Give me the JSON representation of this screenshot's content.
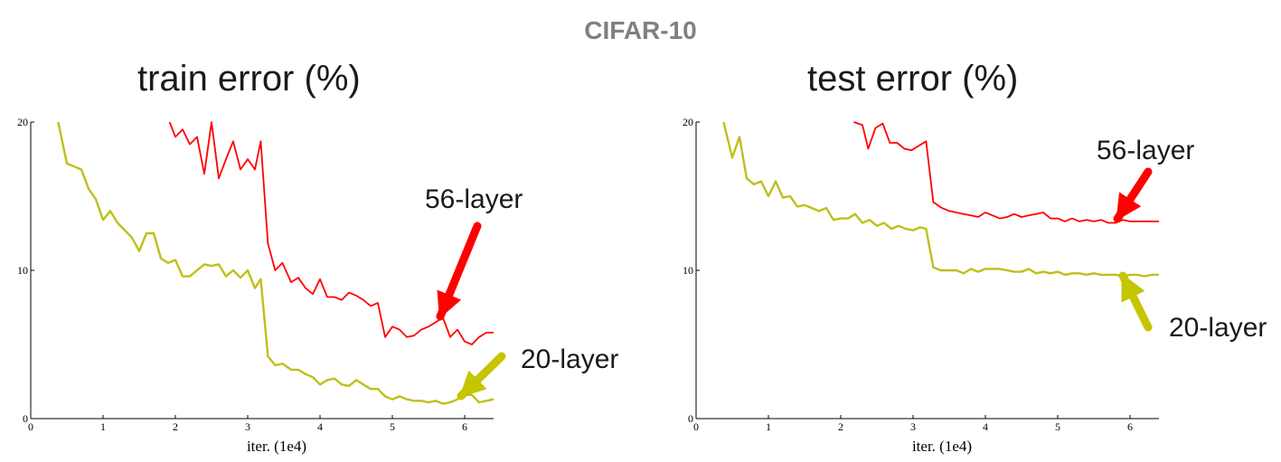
{
  "suptitle": "CIFAR-10",
  "colors": {
    "red": "#ff0000",
    "olive": "#bfbf1a",
    "red_arrow": "#ff0000",
    "olive_arrow": "#c5c500"
  },
  "chart_data": [
    {
      "type": "line",
      "title": "train error (%)",
      "xlabel": "iter. (1e4)",
      "ylabel": "",
      "xlim": [
        0,
        6.4
      ],
      "ylim": [
        0,
        20
      ],
      "xticks": [
        "0",
        "1",
        "2",
        "3",
        "4",
        "5",
        "6"
      ],
      "yticks": [
        "0",
        "10",
        "20"
      ],
      "grid": false,
      "series": [
        {
          "name": "56-layer",
          "color": "#ff0000",
          "x": [
            1.92,
            2.0,
            2.1,
            2.2,
            2.3,
            2.4,
            2.5,
            2.6,
            2.7,
            2.8,
            2.9,
            3.0,
            3.1,
            3.18,
            3.28,
            3.38,
            3.48,
            3.6,
            3.7,
            3.8,
            3.9,
            4.0,
            4.1,
            4.2,
            4.3,
            4.4,
            4.5,
            4.6,
            4.7,
            4.8,
            4.9,
            5.0,
            5.1,
            5.2,
            5.3,
            5.4,
            5.5,
            5.6,
            5.7,
            5.8,
            5.9,
            6.0,
            6.1,
            6.2,
            6.3,
            6.4
          ],
          "y": [
            20.0,
            19.0,
            19.5,
            18.5,
            19.0,
            16.5,
            20.0,
            16.2,
            17.5,
            18.7,
            16.8,
            17.5,
            16.8,
            18.7,
            11.8,
            10.0,
            10.5,
            9.2,
            9.5,
            8.8,
            8.4,
            9.4,
            8.2,
            8.2,
            8.0,
            8.5,
            8.3,
            8.0,
            7.6,
            7.8,
            5.5,
            6.2,
            6.0,
            5.5,
            5.6,
            6.0,
            6.2,
            6.5,
            6.8,
            5.5,
            6.0,
            5.2,
            5.0,
            5.5,
            5.8,
            5.8
          ]
        },
        {
          "name": "20-layer",
          "color": "#bfbf1a",
          "x": [
            0.38,
            0.5,
            0.6,
            0.7,
            0.8,
            0.9,
            1.0,
            1.1,
            1.2,
            1.3,
            1.4,
            1.5,
            1.6,
            1.7,
            1.8,
            1.9,
            2.0,
            2.1,
            2.2,
            2.3,
            2.4,
            2.5,
            2.6,
            2.7,
            2.8,
            2.9,
            3.0,
            3.1,
            3.18,
            3.28,
            3.38,
            3.48,
            3.6,
            3.7,
            3.8,
            3.9,
            4.0,
            4.1,
            4.2,
            4.3,
            4.4,
            4.5,
            4.6,
            4.7,
            4.8,
            4.9,
            5.0,
            5.1,
            5.2,
            5.3,
            5.4,
            5.5,
            5.6,
            5.7,
            5.8,
            5.9,
            6.0,
            6.1,
            6.2,
            6.3,
            6.4
          ],
          "y": [
            20.0,
            17.2,
            17.0,
            16.8,
            15.5,
            14.8,
            13.4,
            14.0,
            13.2,
            12.7,
            12.2,
            11.3,
            12.5,
            12.5,
            10.8,
            10.5,
            10.7,
            9.6,
            9.6,
            10.0,
            10.4,
            10.3,
            10.4,
            9.6,
            10.0,
            9.5,
            10.0,
            8.8,
            9.4,
            4.2,
            3.6,
            3.7,
            3.3,
            3.3,
            3.0,
            2.8,
            2.3,
            2.6,
            2.7,
            2.3,
            2.2,
            2.6,
            2.3,
            2.0,
            2.0,
            1.5,
            1.3,
            1.5,
            1.3,
            1.2,
            1.2,
            1.1,
            1.2,
            1.0,
            1.1,
            1.3,
            1.6,
            1.6,
            1.1,
            1.2,
            1.3
          ]
        }
      ],
      "annotations": [
        {
          "text": "56-layer",
          "series": "56-layer"
        },
        {
          "text": "20-layer",
          "series": "20-layer"
        }
      ]
    },
    {
      "type": "line",
      "title": "test error (%)",
      "xlabel": "iter. (1e4)",
      "ylabel": "",
      "xlim": [
        0,
        6.4
      ],
      "ylim": [
        0,
        20
      ],
      "xticks": [
        "0",
        "1",
        "2",
        "3",
        "4",
        "5",
        "6"
      ],
      "yticks": [
        "0",
        "10",
        "20"
      ],
      "grid": false,
      "series": [
        {
          "name": "56-layer",
          "color": "#ff0000",
          "x": [
            2.18,
            2.3,
            2.38,
            2.48,
            2.58,
            2.68,
            2.78,
            2.88,
            2.98,
            3.08,
            3.18,
            3.28,
            3.4,
            3.5,
            3.6,
            3.7,
            3.8,
            3.9,
            4.0,
            4.1,
            4.2,
            4.3,
            4.4,
            4.5,
            4.6,
            4.7,
            4.8,
            4.9,
            5.0,
            5.1,
            5.2,
            5.3,
            5.4,
            5.5,
            5.6,
            5.7,
            5.8,
            5.9,
            6.0,
            6.1,
            6.2,
            6.3,
            6.4
          ],
          "y": [
            20.0,
            19.8,
            18.2,
            19.6,
            19.9,
            18.6,
            18.6,
            18.2,
            18.1,
            18.4,
            18.7,
            14.6,
            14.2,
            14.0,
            13.9,
            13.8,
            13.7,
            13.6,
            13.9,
            13.7,
            13.5,
            13.6,
            13.8,
            13.6,
            13.7,
            13.8,
            13.9,
            13.5,
            13.5,
            13.3,
            13.5,
            13.3,
            13.4,
            13.3,
            13.4,
            13.2,
            13.2,
            13.4,
            13.3,
            13.3,
            13.3,
            13.3,
            13.3
          ]
        },
        {
          "name": "20-layer",
          "color": "#bfbf1a",
          "x": [
            0.38,
            0.5,
            0.6,
            0.7,
            0.8,
            0.9,
            1.0,
            1.1,
            1.2,
            1.3,
            1.4,
            1.5,
            1.6,
            1.7,
            1.8,
            1.9,
            2.0,
            2.1,
            2.2,
            2.3,
            2.4,
            2.5,
            2.6,
            2.7,
            2.8,
            2.9,
            3.0,
            3.1,
            3.18,
            3.28,
            3.38,
            3.48,
            3.6,
            3.7,
            3.8,
            3.9,
            4.0,
            4.1,
            4.2,
            4.3,
            4.4,
            4.5,
            4.6,
            4.7,
            4.8,
            4.9,
            5.0,
            5.1,
            5.2,
            5.3,
            5.4,
            5.5,
            5.6,
            5.7,
            5.8,
            5.9,
            6.0,
            6.1,
            6.2,
            6.3,
            6.4
          ],
          "y": [
            20.0,
            17.6,
            19.0,
            16.2,
            15.8,
            16.0,
            15.0,
            16.0,
            14.9,
            15.0,
            14.3,
            14.4,
            14.2,
            14.0,
            14.2,
            13.4,
            13.5,
            13.5,
            13.8,
            13.2,
            13.4,
            13.0,
            13.2,
            12.8,
            13.0,
            12.8,
            12.7,
            12.9,
            12.8,
            10.2,
            10.0,
            10.0,
            10.0,
            9.8,
            10.1,
            9.9,
            10.1,
            10.1,
            10.1,
            10.0,
            9.9,
            9.9,
            10.1,
            9.8,
            9.9,
            9.8,
            9.9,
            9.7,
            9.8,
            9.8,
            9.7,
            9.8,
            9.7,
            9.7,
            9.7,
            9.6,
            9.7,
            9.7,
            9.6,
            9.7,
            9.7
          ]
        }
      ],
      "annotations": [
        {
          "text": "56-layer",
          "series": "56-layer"
        },
        {
          "text": "20-layer",
          "series": "20-layer"
        }
      ]
    }
  ]
}
